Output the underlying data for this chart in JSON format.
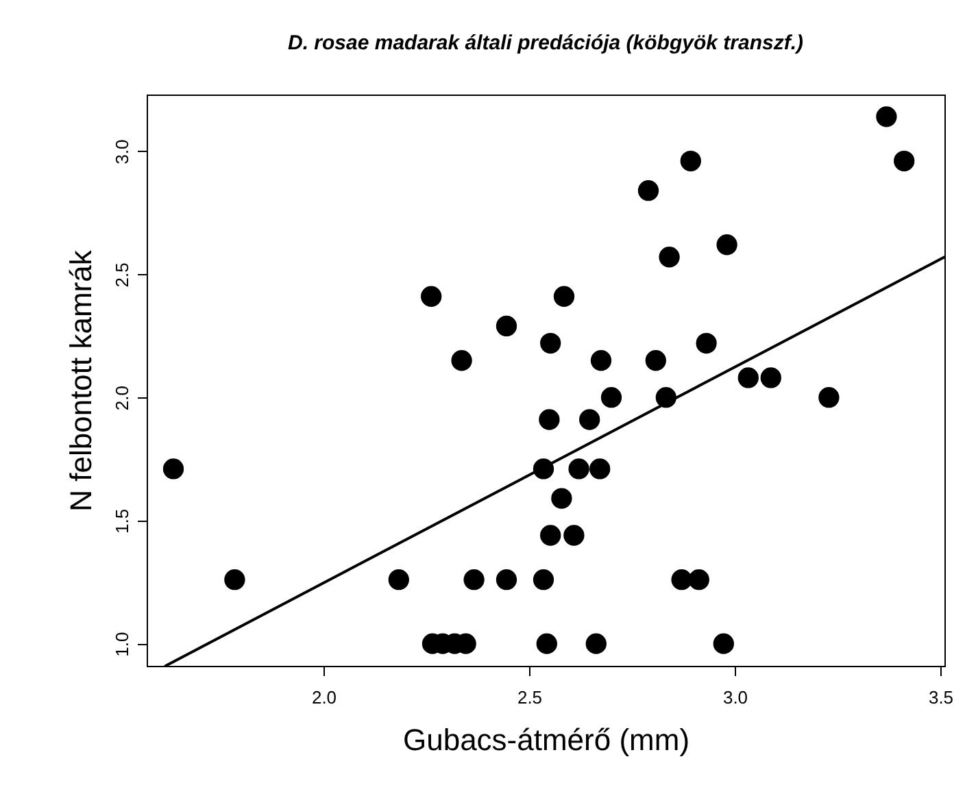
{
  "chart_data": {
    "type": "scatter",
    "title": "D. rosae madarak általi predációja (köbgyök transzf.)",
    "xlabel": "Gubacs-átmérő (mm)",
    "ylabel": "N felbontott kamrák",
    "xlim": [
      1.57,
      3.51
    ],
    "ylim": [
      0.91,
      3.23
    ],
    "xticks": [
      {
        "value": 2,
        "label": "2.0"
      },
      {
        "value": 2.5,
        "label": "2.5"
      },
      {
        "value": 3,
        "label": "3.0"
      },
      {
        "value": 3.5,
        "label": "3.5"
      }
    ],
    "yticks": [
      {
        "value": 1,
        "label": "1.0"
      },
      {
        "value": 1.5,
        "label": "1.5"
      },
      {
        "value": 2,
        "label": "2.0"
      },
      {
        "value": 2.5,
        "label": "2.5"
      },
      {
        "value": 3,
        "label": "3.0"
      }
    ],
    "grid": false,
    "series": [
      {
        "marker": "circle",
        "color": "#000000",
        "x": [
          1.635,
          1.784,
          2.262,
          2.445,
          2.336,
          2.183,
          2.366,
          2.445,
          2.265,
          2.29,
          2.319,
          2.346,
          3.369,
          3.412,
          2.79,
          2.893,
          2.841,
          2.981,
          2.585,
          2.552,
          2.675,
          2.808,
          2.931,
          2.7,
          2.833,
          3.033,
          3.088,
          3.229,
          2.549,
          2.647,
          2.535,
          2.621,
          2.672,
          2.579,
          2.552,
          2.609,
          2.535,
          2.871,
          2.913,
          2.543,
          2.663,
          2.973
        ],
        "values": [
          1.71,
          1.26,
          2.41,
          2.29,
          2.15,
          1.26,
          1.26,
          1.26,
          1.0,
          1.0,
          1.0,
          1.0,
          3.14,
          2.96,
          2.84,
          2.96,
          2.57,
          2.62,
          2.41,
          2.22,
          2.15,
          2.15,
          2.22,
          2.0,
          2.0,
          2.08,
          2.08,
          2.0,
          1.91,
          1.91,
          1.71,
          1.71,
          1.71,
          1.59,
          1.44,
          1.44,
          1.26,
          1.26,
          1.26,
          1.0,
          1.0,
          1.0
        ]
      },
      {
        "type": "line",
        "color": "#000000",
        "x": [
          1.616,
          3.51
        ],
        "values": [
          0.91,
          2.57
        ]
      }
    ]
  }
}
